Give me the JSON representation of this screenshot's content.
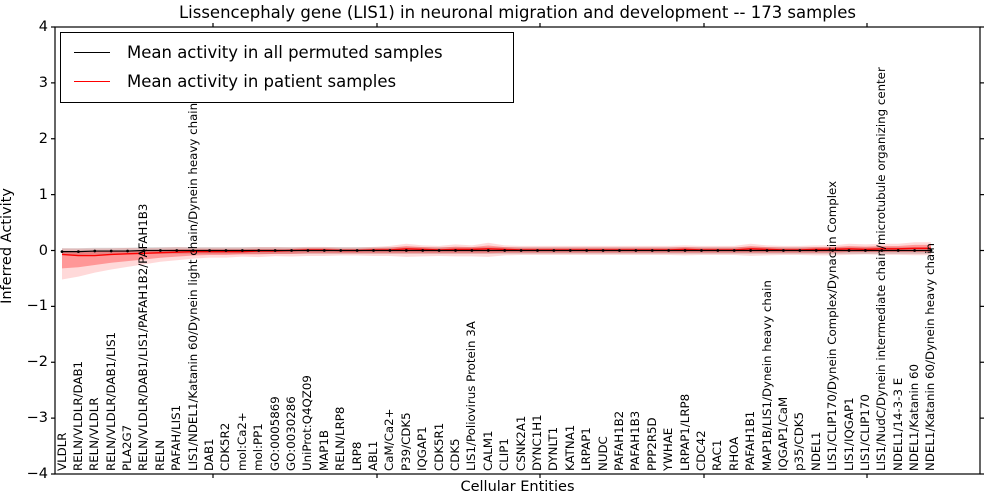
{
  "figure": {
    "title": "Lissencephaly gene (LIS1) in neuronal migration and development -- 173 samples",
    "x_axis_label": "Cellular Entities",
    "y_axis_label": "Inferred Activity"
  },
  "legend": {
    "items": [
      {
        "label": "Mean activity in all permuted samples",
        "color": "#000000"
      },
      {
        "label": "Mean activity in patient samples",
        "color": "#ff0000"
      }
    ]
  },
  "chart_data": {
    "type": "line",
    "title": "Lissencephaly gene (LIS1) in neuronal migration and development -- 173 samples",
    "xlabel": "Cellular Entities",
    "ylabel": "Inferred Activity",
    "ylim": [
      -4,
      4
    ],
    "yticks": [
      4,
      3,
      2,
      1,
      0,
      -1,
      -2,
      -3,
      -4
    ],
    "grid": false,
    "legend_position": "upper left",
    "categories": [
      "VLDLR",
      "RELN/VLDLR/DAB1",
      "RELN/VLDLR",
      "RELN/VLDLR/DAB1/LIS1",
      "PLA2G7",
      "RELN/VLDLR/DAB1/LIS1/PAFAH1B2/PAFAH1B3",
      "RELN",
      "PAFAH/LIS1",
      "LIS1/NDEL1/Katanin 60/Dynein light chain/Dynein heavy chain",
      "DAB1",
      "CDK5R2",
      "mol:Ca2+",
      "mol:PP1",
      "GO:0005869",
      "GO:0030286",
      "UniProt:Q4QZ09",
      "MAP1B",
      "RELN/LRP8",
      "LRP8",
      "ABL1",
      "CaM/Ca2+",
      "P39/CDK5",
      "IQGAP1",
      "CDK5R1",
      "CDK5",
      "LIS1/Poliovirus Protein 3A",
      "CALM1",
      "CLIP1",
      "CSNK2A1",
      "DYNC1H1",
      "DYNLT1",
      "KATNA1",
      "LRPAP1",
      "NUDC",
      "PAFAH1B2",
      "PAFAH1B3",
      "PPP2R5D",
      "YWHAE",
      "LRPAP1/LRP8",
      "CDC42",
      "RAC1",
      "RHOA",
      "PAFAH1B1",
      "MAP1B/LIS1/Dynein heavy chain",
      "IQGAP1/CaM",
      "p35/CDK5",
      "NDEL1",
      "LIS1/CLIP170/Dynein Complex/Dynactin Complex",
      "LIS1/IQGAP1",
      "LIS1/CLIP170",
      "LIS1/NudC/Dynein intermediate chain/microtubule organizing center",
      "NDEL1/14-3-3 E",
      "NDEL1/Katanin 60",
      "NDEL1/Katanin 60/Dynein heavy chain"
    ],
    "series": [
      {
        "name": "Mean activity in all permuted samples",
        "color": "#000000",
        "marker": "dot",
        "band_color": "#999999",
        "band_half_width": 0.06,
        "values": [
          -0.02,
          -0.02,
          -0.01,
          -0.01,
          -0.01,
          0,
          0,
          0,
          0,
          0,
          0,
          0,
          0,
          0,
          0,
          0,
          0,
          0,
          0,
          0,
          0,
          0,
          0,
          0,
          0,
          0,
          0,
          0,
          0,
          0,
          0,
          0,
          0,
          0,
          0,
          0,
          0,
          0,
          0,
          0,
          0,
          0,
          0,
          0,
          0,
          0,
          0,
          0,
          0,
          0,
          0,
          0,
          0,
          0
        ]
      },
      {
        "name": "Mean activity in patient samples",
        "color": "#ff0000",
        "marker": "none",
        "band_color": "#ff0000",
        "values": [
          -0.07,
          -0.09,
          -0.09,
          -0.07,
          -0.06,
          -0.05,
          -0.04,
          -0.03,
          -0.02,
          -0.02,
          -0.02,
          -0.02,
          -0.01,
          -0.01,
          0.0,
          0.01,
          0.01,
          0.0,
          0.0,
          0.01,
          0.01,
          0.03,
          0.02,
          0.01,
          0.02,
          0.02,
          0.03,
          0.02,
          0.01,
          0.01,
          0.01,
          0.01,
          0.01,
          0.01,
          0.01,
          0.01,
          0.01,
          0.01,
          0.02,
          0.01,
          0.01,
          0.01,
          0.03,
          0.02,
          0.01,
          0.01,
          0.02,
          0.02,
          0.03,
          0.02,
          0.03,
          0.03,
          0.04,
          0.04
        ],
        "band_low": [
          -0.32,
          -0.3,
          -0.26,
          -0.22,
          -0.19,
          -0.16,
          -0.13,
          -0.11,
          -0.09,
          -0.08,
          -0.08,
          -0.07,
          -0.07,
          -0.06,
          -0.06,
          -0.05,
          -0.05,
          -0.05,
          -0.05,
          -0.05,
          -0.05,
          -0.05,
          -0.05,
          -0.05,
          -0.05,
          -0.05,
          -0.05,
          -0.04,
          -0.04,
          -0.04,
          -0.04,
          -0.04,
          -0.04,
          -0.04,
          -0.04,
          -0.04,
          -0.04,
          -0.04,
          -0.04,
          -0.04,
          -0.04,
          -0.04,
          -0.04,
          -0.04,
          -0.04,
          -0.04,
          -0.04,
          -0.04,
          -0.03,
          -0.03,
          -0.03,
          -0.03,
          -0.03,
          -0.03
        ],
        "band_high": [
          -0.01,
          -0.02,
          -0.02,
          -0.01,
          0.0,
          0.0,
          0.01,
          0.02,
          0.02,
          0.02,
          0.02,
          0.02,
          0.03,
          0.03,
          0.03,
          0.04,
          0.04,
          0.03,
          0.03,
          0.04,
          0.05,
          0.08,
          0.06,
          0.05,
          0.07,
          0.06,
          0.09,
          0.06,
          0.05,
          0.05,
          0.05,
          0.05,
          0.05,
          0.05,
          0.05,
          0.05,
          0.05,
          0.05,
          0.06,
          0.05,
          0.05,
          0.05,
          0.08,
          0.06,
          0.05,
          0.05,
          0.06,
          0.06,
          0.08,
          0.07,
          0.08,
          0.08,
          0.1,
          0.1
        ]
      }
    ]
  }
}
